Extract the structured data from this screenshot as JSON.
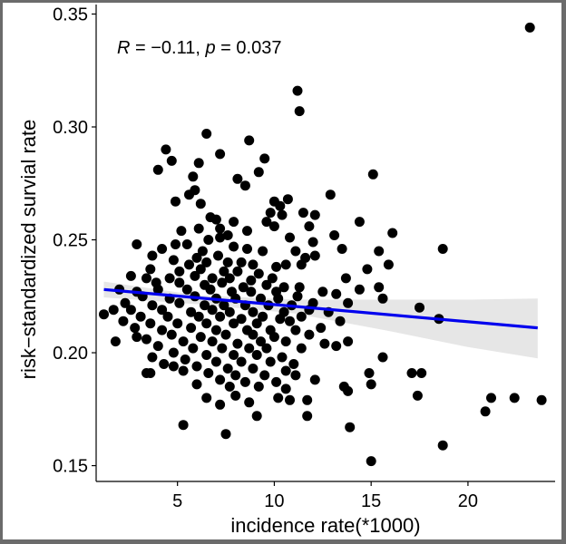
{
  "chart_data": {
    "type": "scatter",
    "title": "",
    "xlabel": "incidence rate(*1000)",
    "ylabel": "risk−standardized survial rate",
    "xlim": [
      0.8,
      24.5
    ],
    "ylim": [
      0.143,
      0.353
    ],
    "xticks": [
      5,
      10,
      15,
      20
    ],
    "yticks": [
      0.15,
      0.2,
      0.25,
      0.3,
      0.35
    ],
    "xtick_labels": [
      "5",
      "10",
      "15",
      "20"
    ],
    "ytick_labels": [
      "0.15",
      "0.20",
      "0.25",
      "0.30",
      "0.35"
    ],
    "annotation": {
      "r_symbol": "R",
      "r_value": " = −0.11, ",
      "p_symbol": "p",
      "p_value": " = 0.037"
    },
    "point_color": "#000000",
    "fit": {
      "x0": 1.2,
      "x1": 23.6,
      "y0": 0.228,
      "y1": 0.211,
      "color": "#0000ee"
    },
    "band": [
      [
        1.2,
        0.2245,
        0.2315
      ],
      [
        6,
        0.2215,
        0.2255
      ],
      [
        11,
        0.2175,
        0.2235
      ],
      [
        16,
        0.2095,
        0.2235
      ],
      [
        20,
        0.2025,
        0.2235
      ],
      [
        23.6,
        0.1975,
        0.224
      ]
    ],
    "band_color": "#e6e6e6",
    "points": [
      [
        23.2,
        0.344
      ],
      [
        11.2,
        0.316
      ],
      [
        11.3,
        0.307
      ],
      [
        6.5,
        0.297
      ],
      [
        8.7,
        0.294
      ],
      [
        4.4,
        0.29
      ],
      [
        9.5,
        0.286
      ],
      [
        7.2,
        0.288
      ],
      [
        4.0,
        0.281
      ],
      [
        6.1,
        0.284
      ],
      [
        4.7,
        0.285
      ],
      [
        9.2,
        0.28
      ],
      [
        15.1,
        0.279
      ],
      [
        5.8,
        0.278
      ],
      [
        8.1,
        0.277
      ],
      [
        5.6,
        0.27
      ],
      [
        4.9,
        0.267
      ],
      [
        10.0,
        0.267
      ],
      [
        10.7,
        0.268
      ],
      [
        12.9,
        0.27
      ],
      [
        5.9,
        0.272
      ],
      [
        8.5,
        0.274
      ],
      [
        10.3,
        0.265
      ],
      [
        6.2,
        0.266
      ],
      [
        9.8,
        0.262
      ],
      [
        10.4,
        0.261
      ],
      [
        11.5,
        0.262
      ],
      [
        12.1,
        0.261
      ],
      [
        6.7,
        0.26
      ],
      [
        7.0,
        0.259
      ],
      [
        7.9,
        0.258
      ],
      [
        9.6,
        0.258
      ],
      [
        14.4,
        0.258
      ],
      [
        10.0,
        0.256
      ],
      [
        11.8,
        0.256
      ],
      [
        6.1,
        0.255
      ],
      [
        5.2,
        0.254
      ],
      [
        7.2,
        0.255
      ],
      [
        8.6,
        0.254
      ],
      [
        7.6,
        0.252
      ],
      [
        10.8,
        0.251
      ],
      [
        13.1,
        0.252
      ],
      [
        16.1,
        0.253
      ],
      [
        6.6,
        0.25
      ],
      [
        7.2,
        0.251
      ],
      [
        4.9,
        0.248
      ],
      [
        5.5,
        0.248
      ],
      [
        2.9,
        0.248
      ],
      [
        12.0,
        0.249
      ],
      [
        7.9,
        0.247
      ],
      [
        8.6,
        0.246
      ],
      [
        11.1,
        0.245
      ],
      [
        13.5,
        0.246
      ],
      [
        15.4,
        0.245
      ],
      [
        18.7,
        0.246
      ],
      [
        3.7,
        0.243
      ],
      [
        4.2,
        0.246
      ],
      [
        6.3,
        0.245
      ],
      [
        9.4,
        0.245
      ],
      [
        6.0,
        0.242
      ],
      [
        7.1,
        0.243
      ],
      [
        8.3,
        0.24
      ],
      [
        11.6,
        0.242
      ],
      [
        12.1,
        0.243
      ],
      [
        4.8,
        0.241
      ],
      [
        5.6,
        0.239
      ],
      [
        6.5,
        0.24
      ],
      [
        7.6,
        0.24
      ],
      [
        8.9,
        0.239
      ],
      [
        10.1,
        0.238
      ],
      [
        10.6,
        0.239
      ],
      [
        11.4,
        0.239
      ],
      [
        15.9,
        0.239
      ],
      [
        3.6,
        0.237
      ],
      [
        5.1,
        0.236
      ],
      [
        6.2,
        0.237
      ],
      [
        7.4,
        0.236
      ],
      [
        8.1,
        0.236
      ],
      [
        9.2,
        0.235
      ],
      [
        14.8,
        0.237
      ],
      [
        2.6,
        0.234
      ],
      [
        3.4,
        0.233
      ],
      [
        4.6,
        0.233
      ],
      [
        5.9,
        0.234
      ],
      [
        6.8,
        0.233
      ],
      [
        7.7,
        0.233
      ],
      [
        8.8,
        0.232
      ],
      [
        9.9,
        0.233
      ],
      [
        13.7,
        0.233
      ],
      [
        3.9,
        0.231
      ],
      [
        5.1,
        0.231
      ],
      [
        6.4,
        0.23
      ],
      [
        7.3,
        0.231
      ],
      [
        8.4,
        0.229
      ],
      [
        9.6,
        0.23
      ],
      [
        10.5,
        0.229
      ],
      [
        11.3,
        0.229
      ],
      [
        15.4,
        0.229
      ],
      [
        2.0,
        0.228
      ],
      [
        2.9,
        0.227
      ],
      [
        4.0,
        0.228
      ],
      [
        5.5,
        0.228
      ],
      [
        6.7,
        0.228
      ],
      [
        7.8,
        0.227
      ],
      [
        8.8,
        0.227
      ],
      [
        10.1,
        0.227
      ],
      [
        12.5,
        0.227
      ],
      [
        14.4,
        0.228
      ],
      [
        3.2,
        0.225
      ],
      [
        4.6,
        0.224
      ],
      [
        5.9,
        0.225
      ],
      [
        7.0,
        0.224
      ],
      [
        8.0,
        0.224
      ],
      [
        9.3,
        0.224
      ],
      [
        10.2,
        0.224
      ],
      [
        11.2,
        0.225
      ],
      [
        13.2,
        0.226
      ],
      [
        15.6,
        0.224
      ],
      [
        2.3,
        0.222
      ],
      [
        3.7,
        0.221
      ],
      [
        5.1,
        0.222
      ],
      [
        6.4,
        0.221
      ],
      [
        7.4,
        0.221
      ],
      [
        8.5,
        0.221
      ],
      [
        9.7,
        0.221
      ],
      [
        10.9,
        0.221
      ],
      [
        12.0,
        0.222
      ],
      [
        13.8,
        0.222
      ],
      [
        17.5,
        0.22
      ],
      [
        1.7,
        0.219
      ],
      [
        2.6,
        0.219
      ],
      [
        4.2,
        0.219
      ],
      [
        5.7,
        0.218
      ],
      [
        6.8,
        0.219
      ],
      [
        7.7,
        0.218
      ],
      [
        8.9,
        0.218
      ],
      [
        10.5,
        0.218
      ],
      [
        11.8,
        0.219
      ],
      [
        12.8,
        0.218
      ],
      [
        3.1,
        0.216
      ],
      [
        4.5,
        0.216
      ],
      [
        6.1,
        0.216
      ],
      [
        7.2,
        0.216
      ],
      [
        8.3,
        0.215
      ],
      [
        9.4,
        0.216
      ],
      [
        10.3,
        0.215
      ],
      [
        11.4,
        0.216
      ],
      [
        1.2,
        0.217
      ],
      [
        2.2,
        0.214
      ],
      [
        3.6,
        0.213
      ],
      [
        5.0,
        0.213
      ],
      [
        6.5,
        0.213
      ],
      [
        7.9,
        0.213
      ],
      [
        9.1,
        0.213
      ],
      [
        10.8,
        0.214
      ],
      [
        13.4,
        0.214
      ],
      [
        18.5,
        0.215
      ],
      [
        2.8,
        0.211
      ],
      [
        4.2,
        0.21
      ],
      [
        5.7,
        0.211
      ],
      [
        7.0,
        0.21
      ],
      [
        8.6,
        0.21
      ],
      [
        9.8,
        0.21
      ],
      [
        11.1,
        0.21
      ],
      [
        12.4,
        0.211
      ],
      [
        4.7,
        0.208
      ],
      [
        6.2,
        0.207
      ],
      [
        7.5,
        0.208
      ],
      [
        8.9,
        0.208
      ],
      [
        10.0,
        0.207
      ],
      [
        11.8,
        0.208
      ],
      [
        2.9,
        0.207
      ],
      [
        3.4,
        0.206
      ],
      [
        1.8,
        0.205
      ],
      [
        5.3,
        0.205
      ],
      [
        6.8,
        0.205
      ],
      [
        8.1,
        0.204
      ],
      [
        9.3,
        0.205
      ],
      [
        10.6,
        0.205
      ],
      [
        12.6,
        0.204
      ],
      [
        13.2,
        0.203
      ],
      [
        13.8,
        0.205
      ],
      [
        4.0,
        0.203
      ],
      [
        5.8,
        0.202
      ],
      [
        7.3,
        0.202
      ],
      [
        8.7,
        0.202
      ],
      [
        9.6,
        0.202
      ],
      [
        11.4,
        0.202
      ],
      [
        4.8,
        0.2
      ],
      [
        6.5,
        0.199
      ],
      [
        7.9,
        0.199
      ],
      [
        9.1,
        0.199
      ],
      [
        10.4,
        0.198
      ],
      [
        3.7,
        0.198
      ],
      [
        5.4,
        0.197
      ],
      [
        7.0,
        0.196
      ],
      [
        8.3,
        0.196
      ],
      [
        9.8,
        0.196
      ],
      [
        11.0,
        0.195
      ],
      [
        15.6,
        0.198
      ],
      [
        4.3,
        0.195
      ],
      [
        6.0,
        0.194
      ],
      [
        7.6,
        0.193
      ],
      [
        8.9,
        0.193
      ],
      [
        10.6,
        0.192
      ],
      [
        4.8,
        0.194
      ],
      [
        6.6,
        0.191
      ],
      [
        8.0,
        0.19
      ],
      [
        9.5,
        0.19
      ],
      [
        11.1,
        0.19
      ],
      [
        3.6,
        0.191
      ],
      [
        3.4,
        0.191
      ],
      [
        5.3,
        0.192
      ],
      [
        7.2,
        0.188
      ],
      [
        8.5,
        0.187
      ],
      [
        10.1,
        0.187
      ],
      [
        12.1,
        0.188
      ],
      [
        14.9,
        0.191
      ],
      [
        17.1,
        0.191
      ],
      [
        17.6,
        0.191
      ],
      [
        6.0,
        0.186
      ],
      [
        7.7,
        0.185
      ],
      [
        9.2,
        0.185
      ],
      [
        10.6,
        0.184
      ],
      [
        13.6,
        0.185
      ],
      [
        15.0,
        0.186
      ],
      [
        6.5,
        0.18
      ],
      [
        8.0,
        0.181
      ],
      [
        10.2,
        0.18
      ],
      [
        11.7,
        0.179
      ],
      [
        13.8,
        0.183
      ],
      [
        17.4,
        0.181
      ],
      [
        21.2,
        0.18
      ],
      [
        22.4,
        0.18
      ],
      [
        23.8,
        0.179
      ],
      [
        7.2,
        0.177
      ],
      [
        8.7,
        0.178
      ],
      [
        10.8,
        0.179
      ],
      [
        20.9,
        0.174
      ],
      [
        9.1,
        0.172
      ],
      [
        11.7,
        0.172
      ],
      [
        5.3,
        0.168
      ],
      [
        7.5,
        0.164
      ],
      [
        13.9,
        0.167
      ],
      [
        18.7,
        0.159
      ],
      [
        15.0,
        0.152
      ]
    ]
  }
}
